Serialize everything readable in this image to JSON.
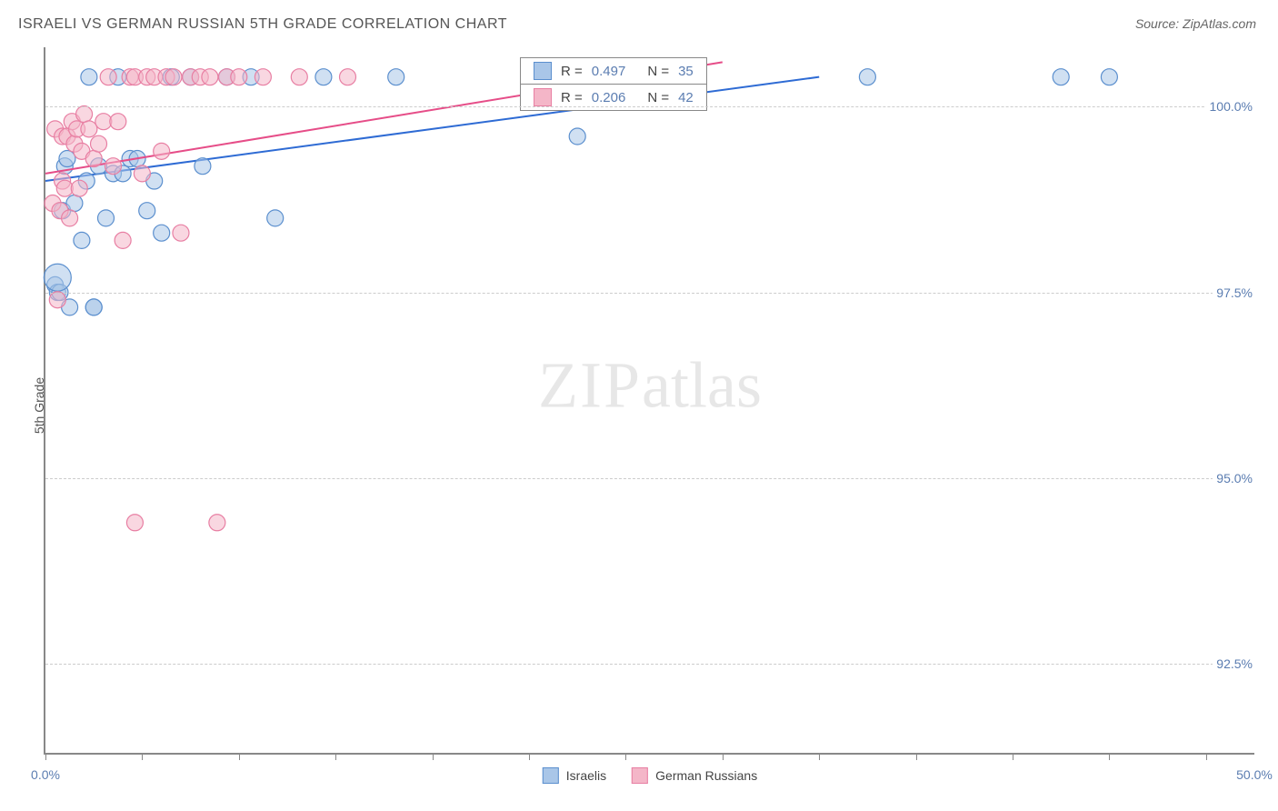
{
  "title": "ISRAELI VS GERMAN RUSSIAN 5TH GRADE CORRELATION CHART",
  "source": "Source: ZipAtlas.com",
  "ylabel": "5th Grade",
  "watermark": {
    "bold": "ZIP",
    "rest": "atlas"
  },
  "chart": {
    "type": "scatter",
    "xlim": [
      0,
      50
    ],
    "ylim": [
      91.3,
      100.8
    ],
    "xtick_positions": [
      0,
      4,
      8,
      12,
      16,
      20,
      24,
      28,
      32,
      36,
      40,
      44,
      48
    ],
    "xtick_labels": {
      "0": "0.0%",
      "50": "50.0%"
    },
    "ytick_positions": [
      92.5,
      95.0,
      97.5,
      100.0
    ],
    "ytick_labels": [
      "92.5%",
      "95.0%",
      "97.5%",
      "100.0%"
    ],
    "grid_color": "#cccccc",
    "axis_color": "#888888",
    "background_color": "#ffffff",
    "series": [
      {
        "name": "Israelis",
        "fill": "#a9c6e8",
        "stroke": "#5b8fce",
        "fill_opacity": 0.55,
        "marker_radius": 9,
        "regression": {
          "R": "0.497",
          "N": "35",
          "x1": 0,
          "y1": 99.0,
          "x2": 32,
          "y2": 100.4,
          "color": "#2e6bd4",
          "width": 2
        },
        "points": [
          [
            0.4,
            97.6
          ],
          [
            0.5,
            97.5
          ],
          [
            0.6,
            97.5
          ],
          [
            0.7,
            98.6
          ],
          [
            0.8,
            99.2
          ],
          [
            0.9,
            99.3
          ],
          [
            1.0,
            97.3
          ],
          [
            1.2,
            98.7
          ],
          [
            1.5,
            98.2
          ],
          [
            1.7,
            99.0
          ],
          [
            1.8,
            100.4
          ],
          [
            2.0,
            97.3
          ],
          [
            2.0,
            97.3
          ],
          [
            2.2,
            99.2
          ],
          [
            2.5,
            98.5
          ],
          [
            2.8,
            99.1
          ],
          [
            3.0,
            100.4
          ],
          [
            3.2,
            99.1
          ],
          [
            3.5,
            99.3
          ],
          [
            3.8,
            99.3
          ],
          [
            4.2,
            98.6
          ],
          [
            4.5,
            99.0
          ],
          [
            4.8,
            98.3
          ],
          [
            5.2,
            100.4
          ],
          [
            6.0,
            100.4
          ],
          [
            6.5,
            99.2
          ],
          [
            7.5,
            100.4
          ],
          [
            8.5,
            100.4
          ],
          [
            9.5,
            98.5
          ],
          [
            11.5,
            100.4
          ],
          [
            14.5,
            100.4
          ],
          [
            22.0,
            99.6
          ],
          [
            34.0,
            100.4
          ],
          [
            42.0,
            100.4
          ],
          [
            44.0,
            100.4
          ]
        ],
        "big_points": [
          [
            0.5,
            97.7,
            15
          ]
        ]
      },
      {
        "name": "German Russians",
        "fill": "#f4b6c8",
        "stroke": "#e87fa3",
        "fill_opacity": 0.55,
        "marker_radius": 9,
        "regression": {
          "R": "0.206",
          "N": "42",
          "x1": 0,
          "y1": 99.1,
          "x2": 28,
          "y2": 100.6,
          "color": "#e64d88",
          "width": 2
        },
        "points": [
          [
            0.3,
            98.7
          ],
          [
            0.4,
            99.7
          ],
          [
            0.5,
            97.4
          ],
          [
            0.6,
            98.6
          ],
          [
            0.7,
            99.0
          ],
          [
            0.7,
            99.6
          ],
          [
            0.8,
            98.9
          ],
          [
            0.9,
            99.6
          ],
          [
            1.0,
            98.5
          ],
          [
            1.1,
            99.8
          ],
          [
            1.2,
            99.5
          ],
          [
            1.3,
            99.7
          ],
          [
            1.4,
            98.9
          ],
          [
            1.5,
            99.4
          ],
          [
            1.6,
            99.9
          ],
          [
            1.8,
            99.7
          ],
          [
            2.0,
            99.3
          ],
          [
            2.2,
            99.5
          ],
          [
            2.4,
            99.8
          ],
          [
            2.6,
            100.4
          ],
          [
            2.8,
            99.2
          ],
          [
            3.0,
            99.8
          ],
          [
            3.2,
            98.2
          ],
          [
            3.5,
            100.4
          ],
          [
            3.7,
            100.4
          ],
          [
            3.7,
            94.4
          ],
          [
            4.0,
            99.1
          ],
          [
            4.2,
            100.4
          ],
          [
            4.5,
            100.4
          ],
          [
            4.8,
            99.4
          ],
          [
            5.0,
            100.4
          ],
          [
            5.3,
            100.4
          ],
          [
            5.6,
            98.3
          ],
          [
            6.0,
            100.4
          ],
          [
            6.4,
            100.4
          ],
          [
            6.8,
            100.4
          ],
          [
            7.1,
            94.4
          ],
          [
            7.5,
            100.4
          ],
          [
            8.0,
            100.4
          ],
          [
            9.0,
            100.4
          ],
          [
            10.5,
            100.4
          ],
          [
            12.5,
            100.4
          ]
        ]
      }
    ],
    "legend_bottom": [
      {
        "label": "Israelis",
        "fill": "#a9c6e8",
        "stroke": "#5b8fce"
      },
      {
        "label": "German Russians",
        "fill": "#f4b6c8",
        "stroke": "#e87fa3"
      }
    ]
  }
}
